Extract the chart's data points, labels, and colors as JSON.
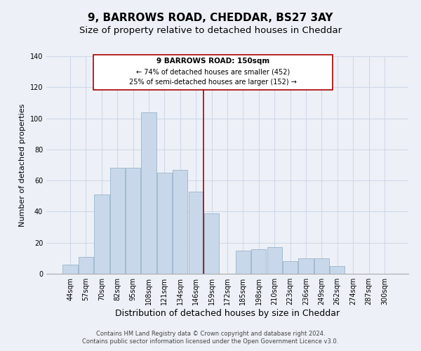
{
  "title": "9, BARROWS ROAD, CHEDDAR, BS27 3AY",
  "subtitle": "Size of property relative to detached houses in Cheddar",
  "xlabel": "Distribution of detached houses by size in Cheddar",
  "ylabel": "Number of detached properties",
  "bar_labels": [
    "44sqm",
    "57sqm",
    "70sqm",
    "82sqm",
    "95sqm",
    "108sqm",
    "121sqm",
    "134sqm",
    "146sqm",
    "159sqm",
    "172sqm",
    "185sqm",
    "198sqm",
    "210sqm",
    "223sqm",
    "236sqm",
    "249sqm",
    "262sqm",
    "274sqm",
    "287sqm",
    "300sqm"
  ],
  "bar_values": [
    6,
    11,
    51,
    68,
    68,
    104,
    65,
    67,
    53,
    39,
    0,
    15,
    16,
    17,
    8,
    10,
    10,
    5,
    0,
    0,
    0
  ],
  "bar_color": "#c8d8ea",
  "bar_edge_color": "#9ab4cc",
  "vline_color": "#aa0000",
  "ylim": [
    0,
    140
  ],
  "yticks": [
    0,
    20,
    40,
    60,
    80,
    100,
    120,
    140
  ],
  "annotation_title": "9 BARROWS ROAD: 150sqm",
  "annotation_line1": "← 74% of detached houses are smaller (452)",
  "annotation_line2": "25% of semi-detached houses are larger (152) →",
  "annotation_box_color": "#ffffff",
  "annotation_box_edge": "#aa0000",
  "footer_line1": "Contains HM Land Registry data © Crown copyright and database right 2024.",
  "footer_line2": "Contains public sector information licensed under the Open Government Licence v3.0.",
  "background_color": "#edf1f7",
  "grid_color": "#d0d8e8",
  "title_fontsize": 11,
  "subtitle_fontsize": 9.5,
  "xlabel_fontsize": 9,
  "ylabel_fontsize": 8,
  "tick_fontsize": 7,
  "footer_fontsize": 6
}
